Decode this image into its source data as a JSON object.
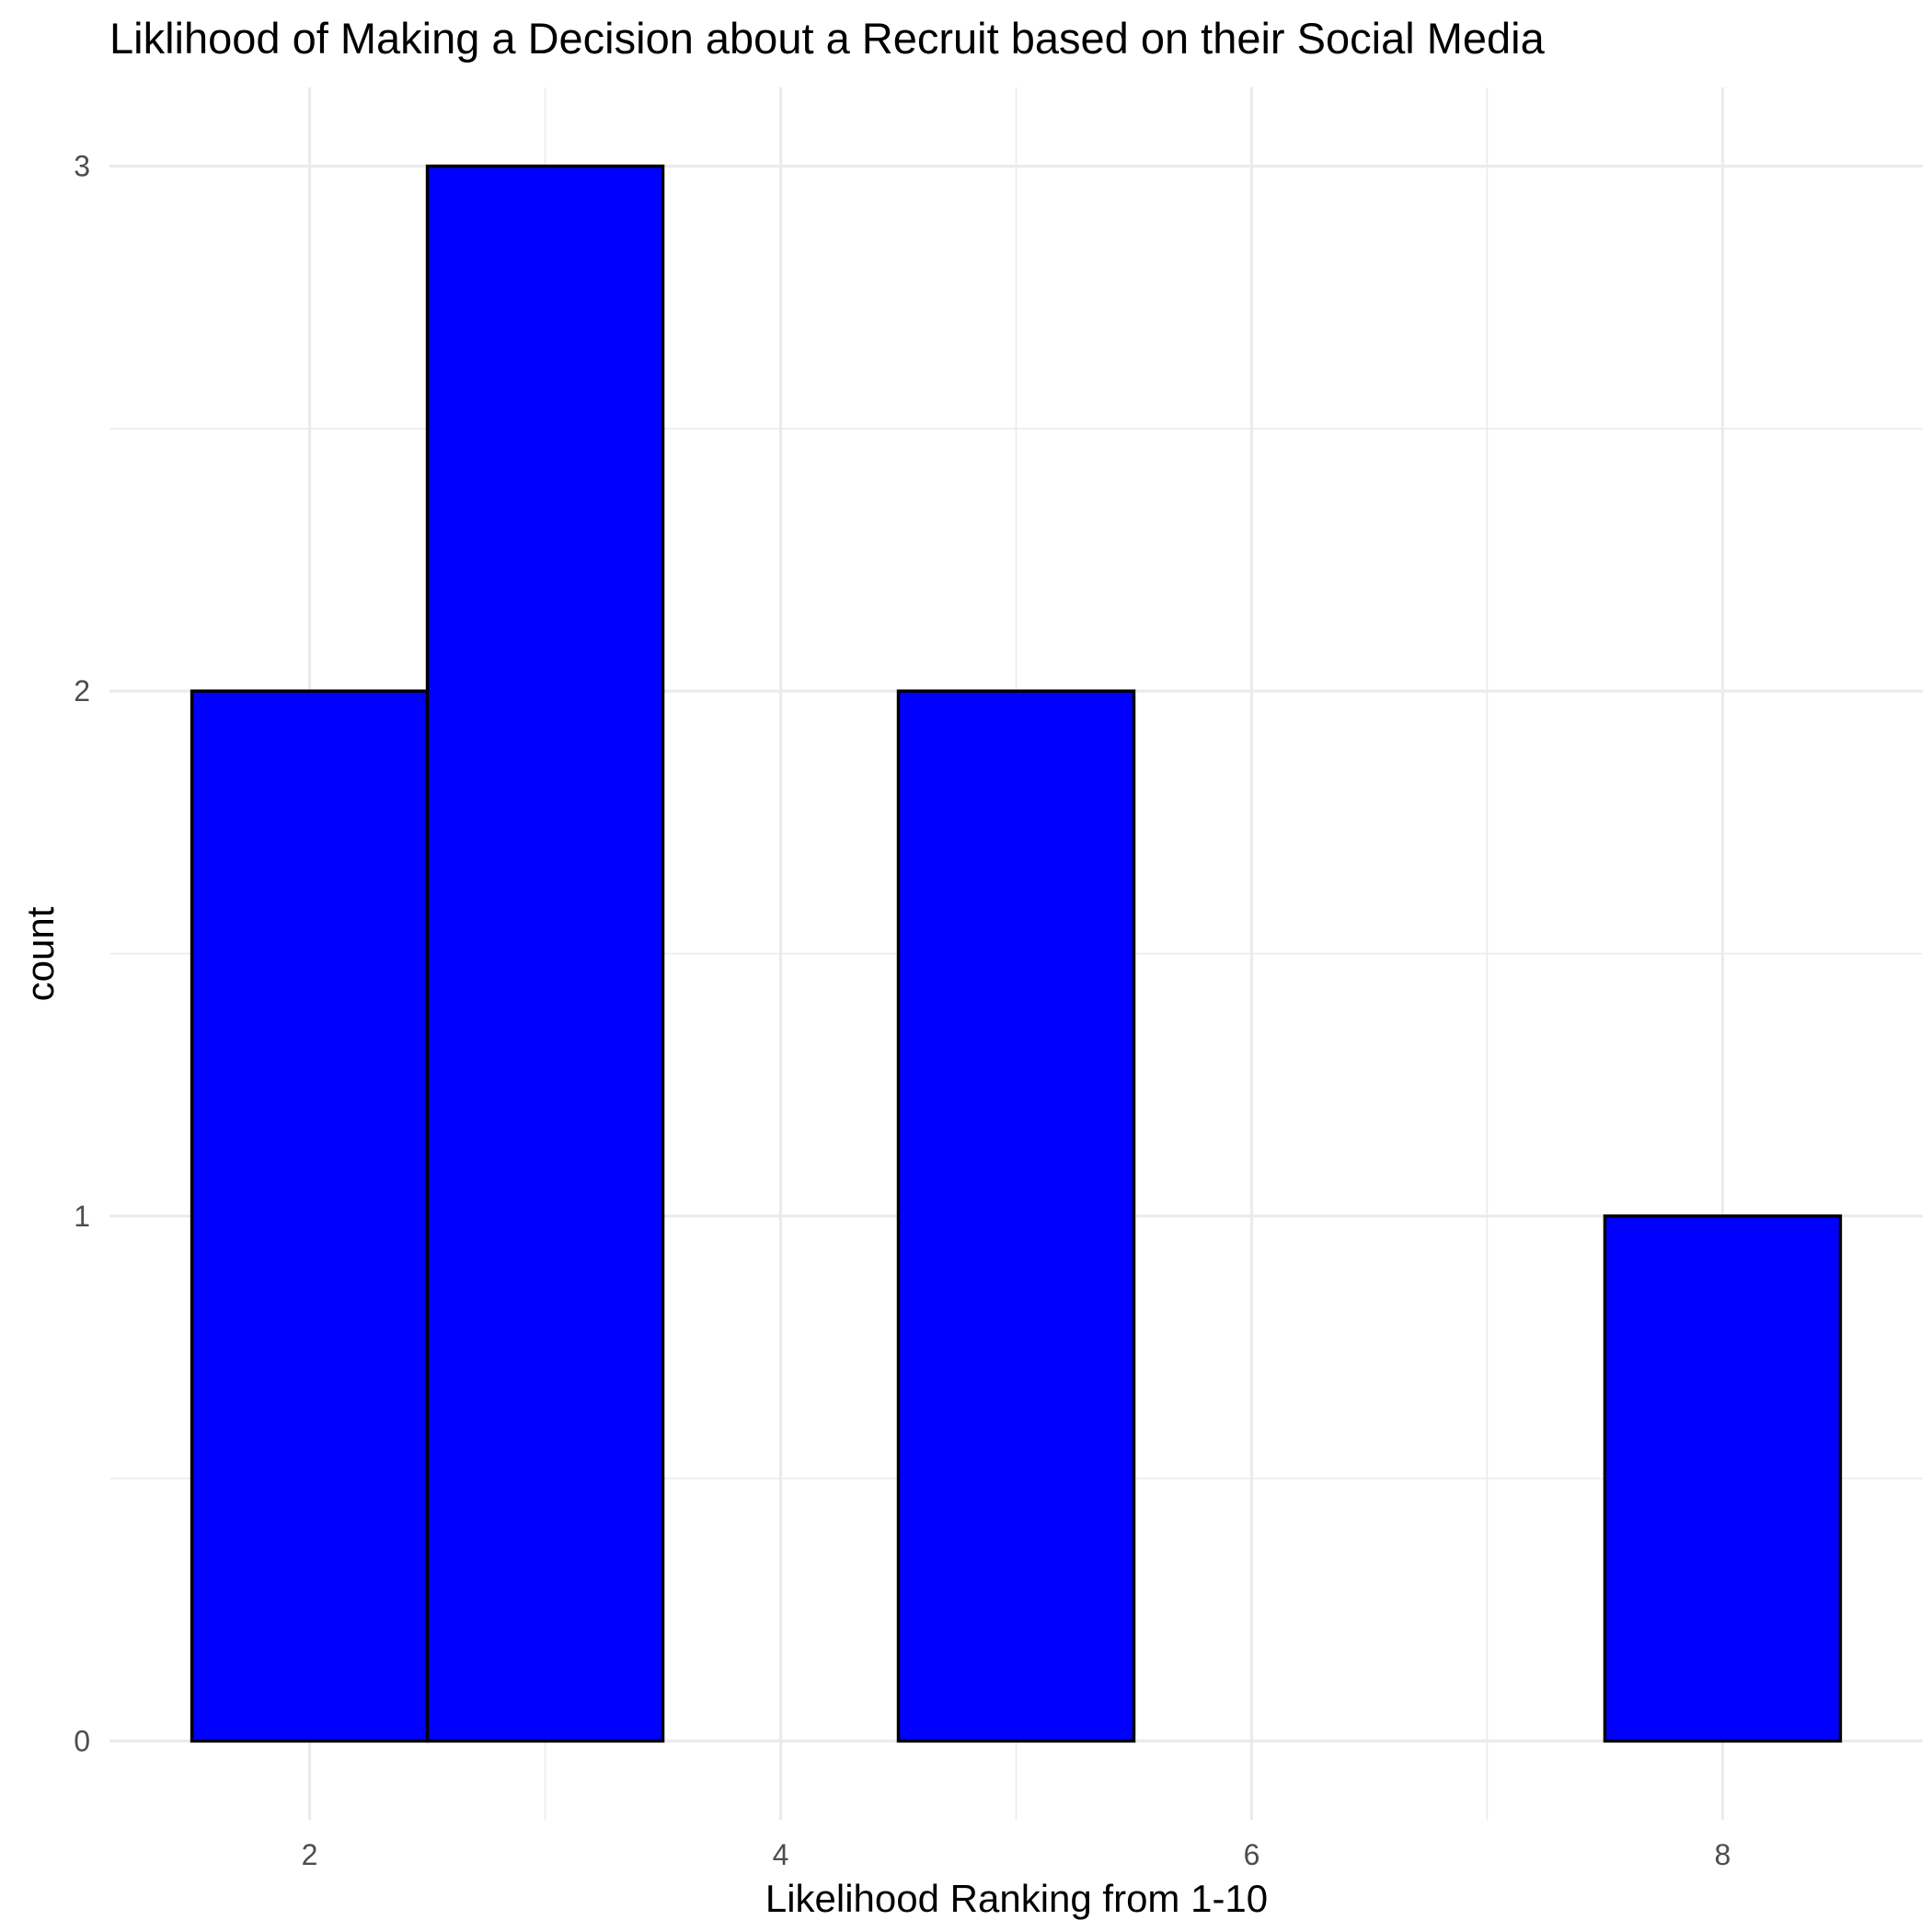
{
  "chart_data": {
    "type": "bar",
    "subtype": "histogram",
    "title": "Liklihood of Making a Decision about a Recruit based on their Social Media",
    "xlabel": "Likelihood Ranking from 1-10",
    "ylabel": "count",
    "bins": [
      {
        "x": 2,
        "count": 2
      },
      {
        "x": 3,
        "count": 3
      },
      {
        "x": 4,
        "count": 0
      },
      {
        "x": 5,
        "count": 2
      },
      {
        "x": 6,
        "count": 0
      },
      {
        "x": 7,
        "count": 0
      },
      {
        "x": 8,
        "count": 1
      }
    ],
    "bin_width": 1,
    "x_ticks": [
      2,
      4,
      6,
      8
    ],
    "y_ticks": [
      0,
      1,
      2,
      3
    ],
    "xlim": [
      1.15,
      8.85
    ],
    "ylim": [
      -0.15,
      3.15
    ],
    "grid": true,
    "legend": "none",
    "bar_color": "#0000ff",
    "bar_outline": "#000000"
  }
}
